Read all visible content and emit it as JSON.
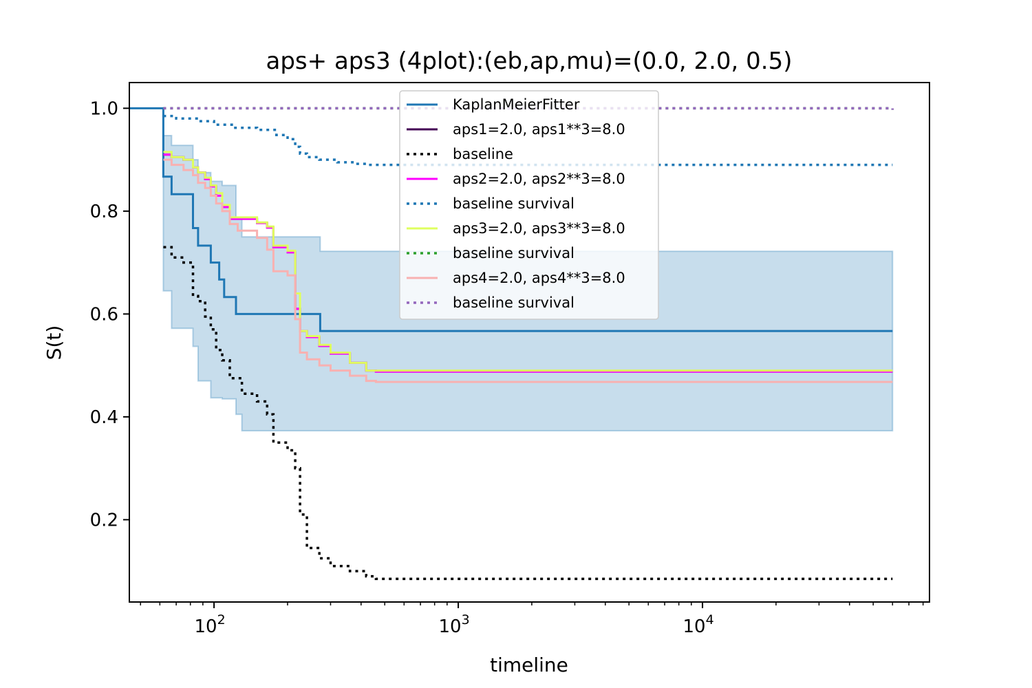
{
  "chart_data": {
    "type": "line",
    "title": "aps+ aps3 (4plot):(eb,ap,mu)=(0.0, 2.0, 0.5)",
    "xlabel": "timeline",
    "ylabel": "S(t)",
    "xscale": "log",
    "xlim": [
      45,
      85000
    ],
    "ylim": [
      0.04,
      1.05
    ],
    "x_ticks": [
      {
        "value": 100,
        "base": "10",
        "exp": "2"
      },
      {
        "value": 1000,
        "base": "10",
        "exp": "3"
      },
      {
        "value": 10000,
        "base": "10",
        "exp": "4"
      }
    ],
    "y_ticks": [
      {
        "value": 0.2,
        "label": "0.2"
      },
      {
        "value": 0.4,
        "label": "0.4"
      },
      {
        "value": 0.6,
        "label": "0.6"
      },
      {
        "value": 0.8,
        "label": "0.8"
      },
      {
        "value": 1.0,
        "label": "1.0"
      }
    ],
    "legend_position": "top-center",
    "confidence_band": {
      "color": "#1f77b4",
      "x": [
        62,
        67,
        82,
        86,
        97,
        108,
        123,
        130,
        272,
        60000
      ],
      "upper": [
        0.947,
        0.928,
        0.9,
        0.875,
        0.858,
        0.85,
        0.785,
        0.75,
        0.722,
        0.722
      ],
      "lower": [
        0.683,
        0.645,
        0.572,
        0.537,
        0.47,
        0.437,
        0.435,
        0.405,
        0.373,
        0.373
      ]
    },
    "series": [
      {
        "name": "KaplanMeierFitter",
        "color": "#1f77b4",
        "style": "solid",
        "x": [
          45,
          62,
          62,
          67,
          82,
          86,
          97,
          105,
          110,
          123,
          272,
          60000
        ],
        "y": [
          1.0,
          1.0,
          0.867,
          0.833,
          0.767,
          0.733,
          0.7,
          0.667,
          0.633,
          0.6,
          0.567,
          0.567
        ]
      },
      {
        "name": "aps1=2.0, aps1**3=8.0",
        "color": "#440154",
        "style": "solid",
        "x": [
          62,
          67,
          75,
          82,
          86,
          92,
          97,
          102,
          108,
          116,
          150,
          165,
          175,
          200,
          215,
          225,
          240,
          270,
          300,
          360,
          420,
          460,
          60000
        ],
        "y": [
          0.91,
          0.905,
          0.9,
          0.885,
          0.875,
          0.862,
          0.848,
          0.83,
          0.808,
          0.785,
          0.777,
          0.768,
          0.73,
          0.72,
          0.61,
          0.567,
          0.555,
          0.538,
          0.523,
          0.505,
          0.49,
          0.488,
          0.488
        ]
      },
      {
        "name": "baseline",
        "color": "#000000",
        "style": "dotted",
        "x": [
          62,
          67,
          75,
          82,
          86,
          92,
          97,
          102,
          108,
          116,
          130,
          150,
          165,
          175,
          200,
          215,
          225,
          240,
          270,
          300,
          360,
          420,
          460,
          60000
        ],
        "y": [
          0.73,
          0.71,
          0.7,
          0.635,
          0.625,
          0.595,
          0.57,
          0.53,
          0.51,
          0.475,
          0.445,
          0.43,
          0.405,
          0.35,
          0.335,
          0.3,
          0.21,
          0.145,
          0.125,
          0.11,
          0.1,
          0.09,
          0.085,
          0.085
        ]
      },
      {
        "name": "aps2=2.0, aps2**3=8.0",
        "color": "#ff00ff",
        "style": "solid",
        "x": [
          62,
          67,
          75,
          82,
          86,
          92,
          97,
          102,
          108,
          116,
          150,
          165,
          175,
          200,
          215,
          225,
          240,
          270,
          300,
          360,
          420,
          460,
          60000
        ],
        "y": [
          0.91,
          0.905,
          0.9,
          0.885,
          0.875,
          0.862,
          0.848,
          0.83,
          0.808,
          0.785,
          0.777,
          0.768,
          0.73,
          0.72,
          0.61,
          0.567,
          0.555,
          0.538,
          0.523,
          0.505,
          0.49,
          0.488,
          0.488
        ]
      },
      {
        "name": "baseline survival",
        "color": "#1f77b4",
        "style": "dotted",
        "x": [
          62,
          70,
          85,
          100,
          120,
          150,
          180,
          200,
          215,
          225,
          240,
          270,
          320,
          380,
          430,
          60000
        ],
        "y": [
          0.985,
          0.98,
          0.975,
          0.968,
          0.962,
          0.958,
          0.948,
          0.94,
          0.925,
          0.912,
          0.905,
          0.9,
          0.895,
          0.892,
          0.89,
          0.89
        ]
      },
      {
        "name": "aps3=2.0, aps3**3=8.0",
        "color": "#dfff5f",
        "style": "solid",
        "x": [
          62,
          67,
          75,
          82,
          86,
          92,
          97,
          102,
          108,
          116,
          150,
          165,
          175,
          200,
          215,
          225,
          240,
          270,
          300,
          360,
          420,
          460,
          60000
        ],
        "y": [
          0.915,
          0.905,
          0.9,
          0.885,
          0.875,
          0.865,
          0.85,
          0.835,
          0.812,
          0.788,
          0.778,
          0.77,
          0.733,
          0.723,
          0.64,
          0.567,
          0.557,
          0.54,
          0.525,
          0.505,
          0.49,
          0.49,
          0.49
        ]
      },
      {
        "name": "baseline survival",
        "color": "#2ca02c",
        "style": "dotted",
        "x": [
          62,
          60000
        ],
        "y": [
          1.0,
          0.997
        ]
      },
      {
        "name": "aps4=2.0, aps4**3=8.0",
        "color": "#f8b1b1",
        "style": "solid",
        "x": [
          62,
          67,
          75,
          82,
          86,
          92,
          97,
          102,
          108,
          116,
          125,
          150,
          165,
          175,
          200,
          215,
          225,
          240,
          270,
          300,
          360,
          420,
          460,
          60000
        ],
        "y": [
          0.9,
          0.89,
          0.88,
          0.87,
          0.855,
          0.845,
          0.83,
          0.815,
          0.8,
          0.775,
          0.762,
          0.748,
          0.725,
          0.683,
          0.675,
          0.59,
          0.525,
          0.512,
          0.5,
          0.49,
          0.48,
          0.47,
          0.468,
          0.468
        ]
      },
      {
        "name": "baseline survival",
        "color": "#9467bd",
        "style": "dotted",
        "x": [
          62,
          60000
        ],
        "y": [
          1.0,
          0.997
        ]
      }
    ]
  }
}
